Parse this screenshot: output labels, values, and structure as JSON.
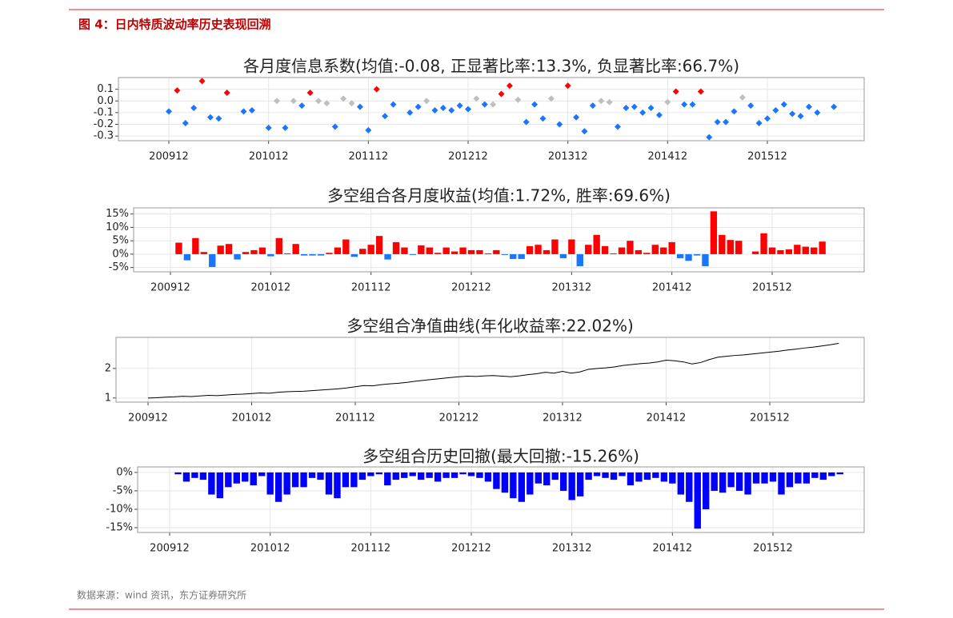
{
  "figure_title": "图 4：日内特质波动率历史表现回溯",
  "source": "数据来源：wind 资讯，东方证券研究所",
  "chart_data": [
    {
      "type": "scatter",
      "title": "各月度信息系数(均值:-0.08, 正显著比率:13.3%, 负显著比率:66.7%)",
      "categories": [
        "200912",
        null,
        null,
        null,
        null,
        null,
        null,
        null,
        null,
        null,
        null,
        null,
        "201012",
        null,
        null,
        null,
        null,
        null,
        null,
        null,
        null,
        null,
        null,
        null,
        "201112",
        null,
        null,
        null,
        null,
        null,
        null,
        null,
        null,
        null,
        null,
        null,
        "201212",
        null,
        null,
        null,
        null,
        null,
        null,
        null,
        null,
        null,
        null,
        null,
        "201312",
        null,
        null,
        null,
        null,
        null,
        null,
        null,
        null,
        null,
        null,
        null,
        "201412",
        null,
        null,
        null,
        null,
        null,
        null,
        null,
        null,
        null,
        null,
        null,
        "201512",
        null,
        null,
        null,
        null,
        null,
        null,
        null,
        null
      ],
      "values": [
        -0.09,
        0.09,
        -0.19,
        -0.06,
        0.17,
        -0.14,
        -0.15,
        0.07,
        null,
        -0.09,
        -0.08,
        null,
        -0.23,
        0.0,
        -0.23,
        0.0,
        -0.04,
        0.07,
        0.0,
        -0.02,
        -0.22,
        0.02,
        -0.02,
        -0.05,
        -0.25,
        0.1,
        -0.13,
        -0.03,
        null,
        -0.1,
        -0.05,
        0.0,
        -0.08,
        -0.06,
        -0.08,
        -0.04,
        -0.07,
        0.02,
        -0.03,
        -0.03,
        0.06,
        0.13,
        0.01,
        -0.18,
        -0.03,
        -0.15,
        0.02,
        -0.2,
        0.13,
        -0.14,
        -0.26,
        -0.04,
        0.0,
        -0.01,
        -0.22,
        -0.06,
        -0.05,
        -0.1,
        -0.06,
        -0.12,
        -0.01,
        0.08,
        -0.03,
        -0.03,
        0.08,
        -0.31,
        -0.18,
        -0.18,
        -0.09,
        0.03,
        -0.04,
        -0.19,
        -0.15,
        -0.08,
        -0.03,
        -0.11,
        -0.13,
        -0.05,
        -0.1,
        null,
        -0.05
      ],
      "colors": [
        "#1a75ff",
        "#ff0000",
        "#1a75ff",
        "#1a75ff",
        "#ff0000",
        "#1a75ff",
        "#1a75ff",
        "#ff0000",
        null,
        "#1a75ff",
        "#1a75ff",
        null,
        "#1a75ff",
        "#bfbfbf",
        "#1a75ff",
        "#bfbfbf",
        "#1a75ff",
        "#ff0000",
        "#bfbfbf",
        "#bfbfbf",
        "#1a75ff",
        "#bfbfbf",
        "#bfbfbf",
        "#1a75ff",
        "#1a75ff",
        "#ff0000",
        "#1a75ff",
        "#1a75ff",
        null,
        "#1a75ff",
        "#1a75ff",
        "#bfbfbf",
        "#1a75ff",
        "#1a75ff",
        "#1a75ff",
        "#1a75ff",
        "#1a75ff",
        "#bfbfbf",
        "#1a75ff",
        "#bfbfbf",
        "#ff0000",
        "#ff0000",
        "#bfbfbf",
        "#1a75ff",
        "#1a75ff",
        "#1a75ff",
        "#bfbfbf",
        "#1a75ff",
        "#ff0000",
        "#1a75ff",
        "#1a75ff",
        "#1a75ff",
        "#bfbfbf",
        "#bfbfbf",
        "#1a75ff",
        "#1a75ff",
        "#1a75ff",
        "#1a75ff",
        "#1a75ff",
        "#1a75ff",
        "#bfbfbf",
        "#ff0000",
        "#1a75ff",
        "#1a75ff",
        "#ff0000",
        "#1a75ff",
        "#1a75ff",
        "#1a75ff",
        "#1a75ff",
        "#bfbfbf",
        "#1a75ff",
        "#1a75ff",
        "#1a75ff",
        "#1a75ff",
        "#1a75ff",
        "#1a75ff",
        "#1a75ff",
        "#1a75ff",
        "#1a75ff",
        null,
        "#1a75ff"
      ],
      "ylim": [
        -0.34,
        0.2
      ],
      "yticks": [
        0.1,
        {
          "value": 0,
          "label": "0.0"
        },
        -0.1,
        -0.2,
        -0.3
      ],
      "grid": true
    },
    {
      "type": "bar",
      "title": "多空组合各月度收益(均值:1.72%, 胜率:69.6%)",
      "categories": [
        "200912",
        null,
        null,
        null,
        null,
        null,
        null,
        null,
        null,
        null,
        null,
        null,
        "201012",
        null,
        null,
        null,
        null,
        null,
        null,
        null,
        null,
        null,
        null,
        null,
        "201112",
        null,
        null,
        null,
        null,
        null,
        null,
        null,
        null,
        null,
        null,
        null,
        "201212",
        null,
        null,
        null,
        null,
        null,
        null,
        null,
        null,
        null,
        null,
        null,
        "201312",
        null,
        null,
        null,
        null,
        null,
        null,
        null,
        null,
        null,
        null,
        null,
        "201412",
        null,
        null,
        null,
        null,
        null,
        null,
        null,
        null,
        null,
        null,
        null,
        "201512",
        null,
        null,
        null,
        null,
        null,
        null,
        null,
        null
      ],
      "values": [
        null,
        4.3,
        -2.3,
        6.0,
        0.8,
        -4.8,
        3.2,
        3.8,
        -2.0,
        0.8,
        1.5,
        2.5,
        -0.8,
        6.0,
        0.3,
        3.8,
        -0.5,
        -0.5,
        -0.5,
        0.5,
        2.5,
        5.5,
        -1.0,
        2.0,
        3.5,
        6.8,
        -2.0,
        4.5,
        2.5,
        -0.3,
        3.3,
        2.5,
        0.5,
        2.5,
        1.0,
        2.5,
        1.5,
        1.5,
        0.3,
        1.5,
        -0.3,
        -1.8,
        -1.8,
        3.0,
        3.5,
        1.5,
        5.5,
        -1.5,
        5.5,
        -4.5,
        3.5,
        7.2,
        3.0,
        0.3,
        2.5,
        5.0,
        1.5,
        0.5,
        3.5,
        2.5,
        4.5,
        -1.5,
        -2.5,
        -0.5,
        -4.5,
        16.0,
        7.2,
        5.3,
        5.0,
        0,
        1.0,
        7.8,
        2.5,
        1.5,
        1.8,
        3.5,
        2.8,
        2.5,
        4.7,
        null,
        null
      ],
      "color": "#ff0000",
      "negative_color": "#1a75ff",
      "ylim": [
        -6.6,
        17.3
      ],
      "yticks": [
        {
          "value": 15,
          "label": "15%"
        },
        {
          "value": 10,
          "label": "10%"
        },
        {
          "value": 5,
          "label": "5%"
        },
        {
          "value": 0,
          "label": "0%"
        },
        {
          "value": -5,
          "label": "-5%"
        }
      ],
      "grid": true
    },
    {
      "type": "line",
      "title": "多空组合净值曲线(年化收益率:22.02%)",
      "categories": [
        "200912",
        null,
        null,
        null,
        null,
        null,
        null,
        null,
        null,
        null,
        null,
        null,
        "201012",
        null,
        null,
        null,
        null,
        null,
        null,
        null,
        null,
        null,
        null,
        null,
        "201112",
        null,
        null,
        null,
        null,
        null,
        null,
        null,
        null,
        null,
        null,
        null,
        "201212",
        null,
        null,
        null,
        null,
        null,
        null,
        null,
        null,
        null,
        null,
        null,
        "201312",
        null,
        null,
        null,
        null,
        null,
        null,
        null,
        null,
        null,
        null,
        null,
        "201412",
        null,
        null,
        null,
        null,
        null,
        null,
        null,
        null,
        null,
        null,
        null,
        "201512",
        null,
        null,
        null,
        null,
        null,
        null,
        null,
        null
      ],
      "values": [
        1.0,
        1.01,
        1.03,
        1.04,
        1.06,
        1.05,
        1.07,
        1.09,
        1.08,
        1.1,
        1.12,
        1.13,
        1.15,
        1.17,
        1.16,
        1.19,
        1.21,
        1.22,
        1.23,
        1.25,
        1.27,
        1.29,
        1.31,
        1.34,
        1.38,
        1.42,
        1.41,
        1.45,
        1.48,
        1.5,
        1.53,
        1.57,
        1.6,
        1.63,
        1.66,
        1.69,
        1.72,
        1.74,
        1.73,
        1.75,
        1.76,
        1.74,
        1.72,
        1.75,
        1.79,
        1.82,
        1.87,
        1.84,
        1.9,
        1.84,
        1.88,
        1.97,
        2.0,
        2.02,
        2.05,
        2.1,
        2.13,
        2.16,
        2.18,
        2.22,
        2.28,
        2.26,
        2.22,
        2.15,
        2.2,
        2.3,
        2.38,
        2.41,
        2.44,
        2.46,
        2.49,
        2.52,
        2.55,
        2.58,
        2.62,
        2.65,
        2.69,
        2.72,
        2.76,
        2.8,
        2.85
      ],
      "color": "#000000",
      "ylim": [
        0.86,
        3.05
      ],
      "yticks": [
        2,
        1
      ],
      "grid": true
    },
    {
      "type": "bar",
      "title": "多空组合历史回撤(最大回撤:-15.26%)",
      "categories": [
        "200912",
        null,
        null,
        null,
        null,
        null,
        null,
        null,
        null,
        null,
        null,
        null,
        "201012",
        null,
        null,
        null,
        null,
        null,
        null,
        null,
        null,
        null,
        null,
        null,
        "201112",
        null,
        null,
        null,
        null,
        null,
        null,
        null,
        null,
        null,
        null,
        null,
        "201212",
        null,
        null,
        null,
        null,
        null,
        null,
        null,
        null,
        null,
        null,
        null,
        "201312",
        null,
        null,
        null,
        null,
        null,
        null,
        null,
        null,
        null,
        null,
        null,
        "201412",
        null,
        null,
        null,
        null,
        null,
        null,
        null,
        null,
        null,
        null,
        null,
        "201512",
        null,
        null,
        null,
        null,
        null,
        null,
        null,
        null
      ],
      "values": [
        0,
        -0.5,
        -2.5,
        -1.5,
        -2,
        -6,
        -7,
        -4,
        -3,
        -2.5,
        -3.5,
        -1,
        -6,
        -8,
        -6,
        -4,
        -4,
        -1.5,
        -2,
        -6,
        -7,
        -4,
        -4,
        -2,
        -1,
        -0.5,
        -3.5,
        -2,
        -1.5,
        -1,
        -2,
        -1.5,
        -2.5,
        -1.5,
        -1.5,
        -0.5,
        -1,
        -1.5,
        -2.5,
        -4.5,
        -5.5,
        -7,
        -8,
        -6,
        -3,
        -3.5,
        -2,
        -5,
        -7.5,
        -6.5,
        -2,
        -1,
        -1.5,
        -2,
        -1,
        -3.5,
        -2.5,
        -2,
        -1.5,
        -2.5,
        -3,
        -6,
        -8,
        -15.26,
        -10,
        -5,
        -5.5,
        -4,
        -5,
        -6,
        -3,
        -3,
        -2.5,
        -6,
        -4,
        -3,
        -3,
        -1.5,
        -2,
        -1,
        -0.5
      ],
      "color": "#0000ff",
      "ylim": [
        -16.3,
        1.5
      ],
      "yticks": [
        {
          "value": 0,
          "label": "0%"
        },
        {
          "value": -5,
          "label": "-5%"
        },
        {
          "value": -10,
          "label": "-10%"
        },
        {
          "value": -15,
          "label": "-15%"
        }
      ],
      "grid": true
    }
  ]
}
